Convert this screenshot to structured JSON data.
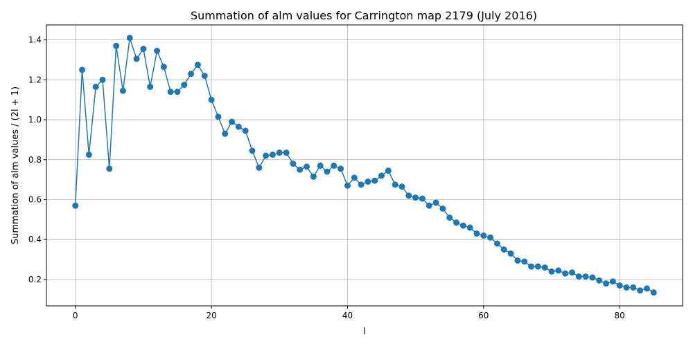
{
  "chart_data": {
    "type": "line",
    "title": "Summation of alm values for Carrington map 2179 (July 2016)",
    "xlabel": "l",
    "ylabel": "Summation of alm values / (2l + 1)",
    "xlim": [
      -4.25,
      89.25
    ],
    "ylim": [
      0.068,
      1.475
    ],
    "grid": true,
    "marker": "circle",
    "color": "#1f77b4",
    "x_ticks": [
      {
        "value": 0,
        "label": "0"
      },
      {
        "value": 20,
        "label": "20"
      },
      {
        "value": 40,
        "label": "40"
      },
      {
        "value": 60,
        "label": "60"
      },
      {
        "value": 80,
        "label": "80"
      }
    ],
    "y_ticks": [
      {
        "value": 0.2,
        "label": "0.2"
      },
      {
        "value": 0.4,
        "label": "0.4"
      },
      {
        "value": 0.6,
        "label": "0.6"
      },
      {
        "value": 0.8,
        "label": "0.8"
      },
      {
        "value": 1.0,
        "label": "1.0"
      },
      {
        "value": 1.2,
        "label": "1.2"
      },
      {
        "value": 1.4,
        "label": "1.4"
      }
    ],
    "x": [
      0,
      1,
      2,
      3,
      4,
      5,
      6,
      7,
      8,
      9,
      10,
      11,
      12,
      13,
      14,
      15,
      16,
      17,
      18,
      19,
      20,
      21,
      22,
      23,
      24,
      25,
      26,
      27,
      28,
      29,
      30,
      31,
      32,
      33,
      34,
      35,
      36,
      37,
      38,
      39,
      40,
      41,
      42,
      43,
      44,
      45,
      46,
      47,
      48,
      49,
      50,
      51,
      52,
      53,
      54,
      55,
      56,
      57,
      58,
      59,
      60,
      61,
      62,
      63,
      64,
      65,
      66,
      67,
      68,
      69,
      70,
      71,
      72,
      73,
      74,
      75,
      76,
      77,
      78,
      79,
      80,
      81,
      82,
      83,
      84,
      85
    ],
    "y": [
      0.57,
      1.25,
      0.825,
      1.165,
      1.2,
      0.755,
      1.37,
      1.145,
      1.41,
      1.305,
      1.355,
      1.165,
      1.345,
      1.265,
      1.14,
      1.14,
      1.175,
      1.23,
      1.275,
      1.22,
      1.1,
      1.015,
      0.93,
      0.99,
      0.965,
      0.945,
      0.845,
      0.76,
      0.82,
      0.825,
      0.835,
      0.835,
      0.78,
      0.75,
      0.765,
      0.715,
      0.77,
      0.74,
      0.77,
      0.755,
      0.67,
      0.71,
      0.675,
      0.69,
      0.695,
      0.72,
      0.745,
      0.675,
      0.665,
      0.62,
      0.61,
      0.605,
      0.57,
      0.585,
      0.555,
      0.51,
      0.485,
      0.47,
      0.46,
      0.43,
      0.42,
      0.41,
      0.38,
      0.35,
      0.33,
      0.295,
      0.29,
      0.265,
      0.265,
      0.26,
      0.24,
      0.245,
      0.23,
      0.235,
      0.215,
      0.215,
      0.21,
      0.195,
      0.18,
      0.19,
      0.17,
      0.16,
      0.16,
      0.145,
      0.155,
      0.135
    ]
  }
}
